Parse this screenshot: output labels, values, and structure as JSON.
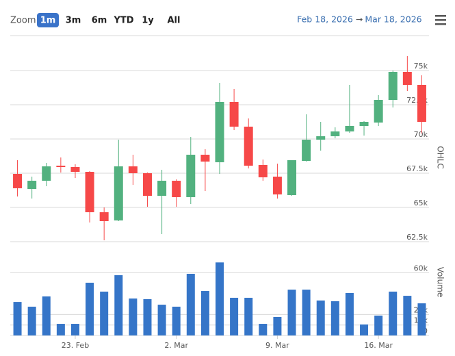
{
  "toolbar": {
    "zoom_label": "Zoom",
    "buttons": [
      "1m",
      "3m",
      "6m",
      "YTD",
      "1y",
      "All"
    ],
    "selected": "1m",
    "range_from": "Feb 18, 2026",
    "range_arrow": "→",
    "range_to": "Mar 18, 2026"
  },
  "chart_data": [
    {
      "type": "candlestick",
      "y_label": "OHLC",
      "categories": [
        null,
        null,
        null,
        null,
        "23. Feb",
        null,
        null,
        null,
        null,
        null,
        null,
        "2. Mar",
        null,
        null,
        null,
        null,
        null,
        null,
        "9. Mar",
        null,
        null,
        null,
        null,
        null,
        null,
        "16. Mar",
        null,
        null,
        null
      ],
      "open": [
        67450,
        66350,
        66950,
        68050,
        67950,
        67600,
        64650,
        64050,
        68000,
        67500,
        65850,
        66950,
        65750,
        68850,
        68300,
        72700,
        70900,
        68100,
        67250,
        65900,
        68400,
        69950,
        70200,
        70550,
        70950,
        71200,
        72850,
        74900,
        73950
      ],
      "high": [
        68450,
        67250,
        68250,
        68650,
        68150,
        67650,
        65000,
        69950,
        68850,
        67550,
        67750,
        67050,
        70150,
        69250,
        74100,
        73650,
        71500,
        68500,
        68200,
        68450,
        71800,
        71250,
        70850,
        73950,
        71300,
        73200,
        75000,
        76050,
        74650
      ],
      "low": [
        65800,
        65650,
        66550,
        67550,
        67150,
        63900,
        62600,
        64000,
        66650,
        65050,
        63050,
        65050,
        65250,
        66200,
        67450,
        70650,
        67850,
        66950,
        65650,
        65850,
        68350,
        69150,
        70050,
        70450,
        70250,
        70950,
        72300,
        73500,
        70400
      ],
      "close": [
        66400,
        66950,
        68000,
        67950,
        67600,
        64650,
        64000,
        68000,
        67500,
        65850,
        66950,
        65750,
        68850,
        68350,
        72700,
        70900,
        68050,
        67200,
        65950,
        68450,
        69950,
        70200,
        70550,
        70950,
        71250,
        72850,
        74900,
        73950,
        71250
      ],
      "up_color": "#52b17f",
      "down_color": "#f64848",
      "ylim": [
        62400,
        77550
      ],
      "yticks": [
        {
          "value": 62500,
          "label": "62.5k"
        },
        {
          "value": 65000,
          "label": "65k"
        },
        {
          "value": 67500,
          "label": "67.5k"
        },
        {
          "value": 70000,
          "label": "70k"
        },
        {
          "value": 72500,
          "label": "72.5k"
        },
        {
          "value": 75000,
          "label": "75k"
        }
      ],
      "grid": true
    },
    {
      "type": "bar",
      "y_label": "Volume",
      "values": [
        32000,
        27500,
        37300,
        11100,
        11100,
        50400,
        41900,
        57600,
        35300,
        34700,
        29400,
        27500,
        58900,
        42500,
        69800,
        36000,
        36000,
        11100,
        17700,
        43800,
        43800,
        33400,
        32700,
        40600,
        10500,
        19000,
        41900,
        37900,
        30700
      ],
      "color": "#3575c8",
      "ylim": [
        0,
        70000
      ],
      "yticks": [
        {
          "value": 0,
          "label": "0"
        },
        {
          "value": 10000,
          "label": "10k"
        },
        {
          "value": 20000,
          "label": "20k"
        },
        {
          "value": 60000,
          "label": "60k"
        }
      ],
      "grid": true
    }
  ]
}
